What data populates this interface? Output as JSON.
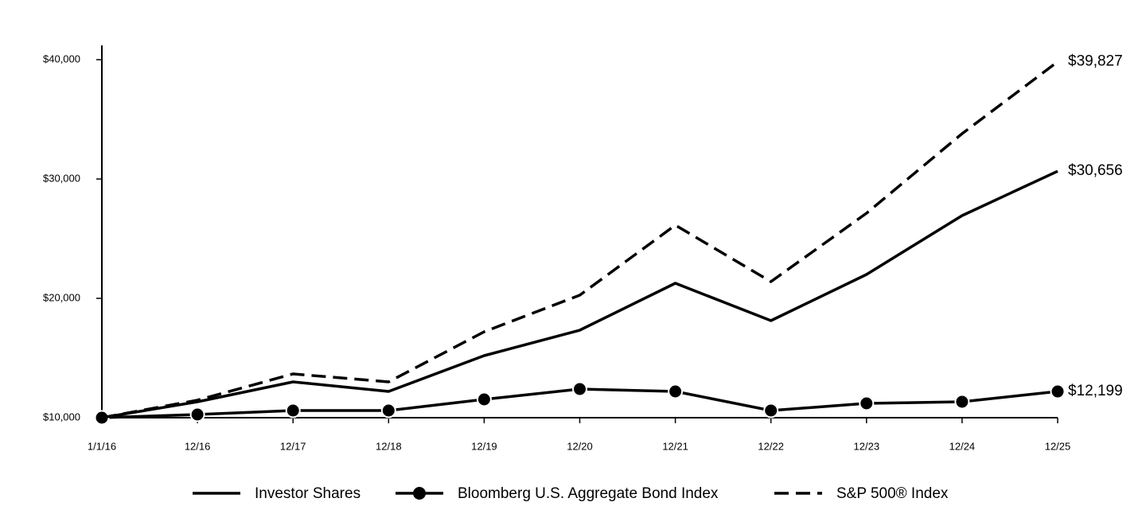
{
  "chart_data": {
    "type": "line",
    "categories": [
      "1/1/16",
      "12/16",
      "12/17",
      "12/18",
      "12/19",
      "12/20",
      "12/21",
      "12/22",
      "12/23",
      "12/24",
      "12/25"
    ],
    "ylim": [
      10000,
      40000
    ],
    "yticks": [
      {
        "value": 10000,
        "label": "$10,000"
      },
      {
        "value": 20000,
        "label": "$20,000"
      },
      {
        "value": 30000,
        "label": "$30,000"
      },
      {
        "value": 40000,
        "label": "$40,000"
      }
    ],
    "grid": false,
    "legend": "bottom",
    "series": [
      {
        "name": "Investor Shares",
        "color": "#000000",
        "dashed": false,
        "marker": false,
        "values": [
          10000,
          11333,
          13000,
          12200,
          15200,
          17333,
          21267,
          18133,
          22000,
          26933,
          30656
        ],
        "value_labels": [
          null,
          null,
          null,
          null,
          null,
          null,
          null,
          null,
          null,
          null,
          "$30,656"
        ]
      },
      {
        "name": "Bloomberg U.S. Aggregate Bond Index",
        "color": "#000000",
        "dashed": false,
        "marker": true,
        "values": [
          10000,
          10267,
          10600,
          10600,
          11533,
          12400,
          12200,
          10600,
          11200,
          11333,
          12199
        ],
        "value_labels": [
          null,
          null,
          null,
          null,
          null,
          null,
          null,
          null,
          null,
          null,
          "$12,199"
        ]
      },
      {
        "name": "S&P 500® Index",
        "color": "#000000",
        "dashed": true,
        "marker": false,
        "values": [
          10000,
          11467,
          13667,
          13000,
          17200,
          20267,
          26133,
          21400,
          27133,
          33800,
          39827
        ],
        "value_labels": [
          null,
          null,
          null,
          null,
          null,
          null,
          null,
          null,
          null,
          null,
          "$39,827"
        ]
      }
    ]
  }
}
